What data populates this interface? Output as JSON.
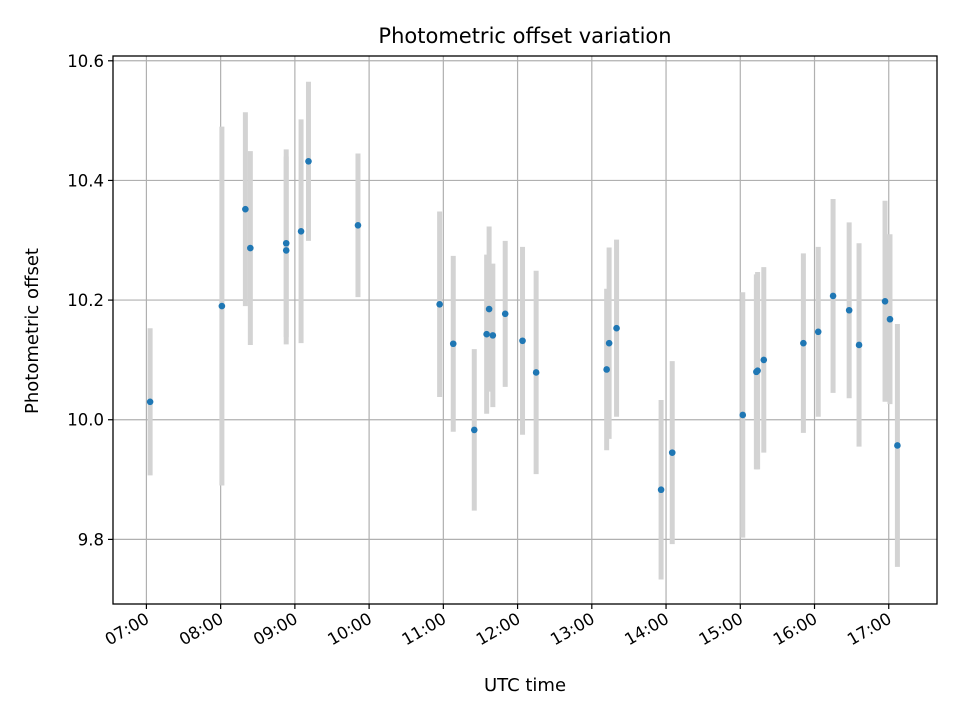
{
  "chart_data": {
    "type": "scatter",
    "title": "Photometric offset variation",
    "xlabel": "UTC time",
    "ylabel": "Photometric offset",
    "x_unit": "hours UTC",
    "xlim": [
      "06:33",
      "17:39"
    ],
    "ylim": [
      9.692,
      10.608
    ],
    "grid": true,
    "x_ticks": [
      "07:00",
      "08:00",
      "09:00",
      "10:00",
      "11:00",
      "12:00",
      "13:00",
      "14:00",
      "15:00",
      "16:00",
      "17:00"
    ],
    "y_ticks": [
      "9.8",
      "10.0",
      "10.2",
      "10.4",
      "10.6"
    ],
    "colors": {
      "point": "#1f77b4",
      "errorbar": "#d3d3d3",
      "grid": "#b0b0b0"
    },
    "points": [
      {
        "x": "07:03",
        "y": 10.03,
        "err": 0.123
      },
      {
        "x": "08:01",
        "y": 10.19,
        "err": 0.3
      },
      {
        "x": "08:20",
        "y": 10.352,
        "err": 0.162
      },
      {
        "x": "08:24",
        "y": 10.287,
        "err": 0.162
      },
      {
        "x": "08:53",
        "y": 10.283,
        "err": 0.157
      },
      {
        "x": "08:53",
        "y": 10.295,
        "err": 0.157
      },
      {
        "x": "09:05",
        "y": 10.315,
        "err": 0.187
      },
      {
        "x": "09:11",
        "y": 10.432,
        "err": 0.133
      },
      {
        "x": "09:51",
        "y": 10.325,
        "err": 0.12
      },
      {
        "x": "10:57",
        "y": 10.193,
        "err": 0.155
      },
      {
        "x": "11:08",
        "y": 10.127,
        "err": 0.147
      },
      {
        "x": "11:25",
        "y": 9.983,
        "err": 0.135
      },
      {
        "x": "11:35",
        "y": 10.143,
        "err": 0.133
      },
      {
        "x": "11:37",
        "y": 10.185,
        "err": 0.138
      },
      {
        "x": "11:40",
        "y": 10.141,
        "err": 0.12
      },
      {
        "x": "11:50",
        "y": 10.177,
        "err": 0.122
      },
      {
        "x": "12:04",
        "y": 10.132,
        "err": 0.157
      },
      {
        "x": "12:15",
        "y": 10.079,
        "err": 0.17
      },
      {
        "x": "13:12",
        "y": 10.084,
        "err": 0.135
      },
      {
        "x": "13:14",
        "y": 10.128,
        "err": 0.16
      },
      {
        "x": "13:20",
        "y": 10.153,
        "err": 0.148
      },
      {
        "x": "13:56",
        "y": 9.883,
        "err": 0.15
      },
      {
        "x": "14:05",
        "y": 9.945,
        "err": 0.153
      },
      {
        "x": "15:02",
        "y": 10.008,
        "err": 0.205
      },
      {
        "x": "15:13",
        "y": 10.08,
        "err": 0.163
      },
      {
        "x": "15:14",
        "y": 10.082,
        "err": 0.165
      },
      {
        "x": "15:19",
        "y": 10.1,
        "err": 0.155
      },
      {
        "x": "15:51",
        "y": 10.128,
        "err": 0.15
      },
      {
        "x": "16:03",
        "y": 10.147,
        "err": 0.142
      },
      {
        "x": "16:15",
        "y": 10.207,
        "err": 0.162
      },
      {
        "x": "16:28",
        "y": 10.183,
        "err": 0.147
      },
      {
        "x": "16:36",
        "y": 10.125,
        "err": 0.17
      },
      {
        "x": "16:57",
        "y": 10.198,
        "err": 0.168
      },
      {
        "x": "17:01",
        "y": 10.168,
        "err": 0.142
      },
      {
        "x": "17:07",
        "y": 9.957,
        "err": 0.203
      }
    ]
  }
}
